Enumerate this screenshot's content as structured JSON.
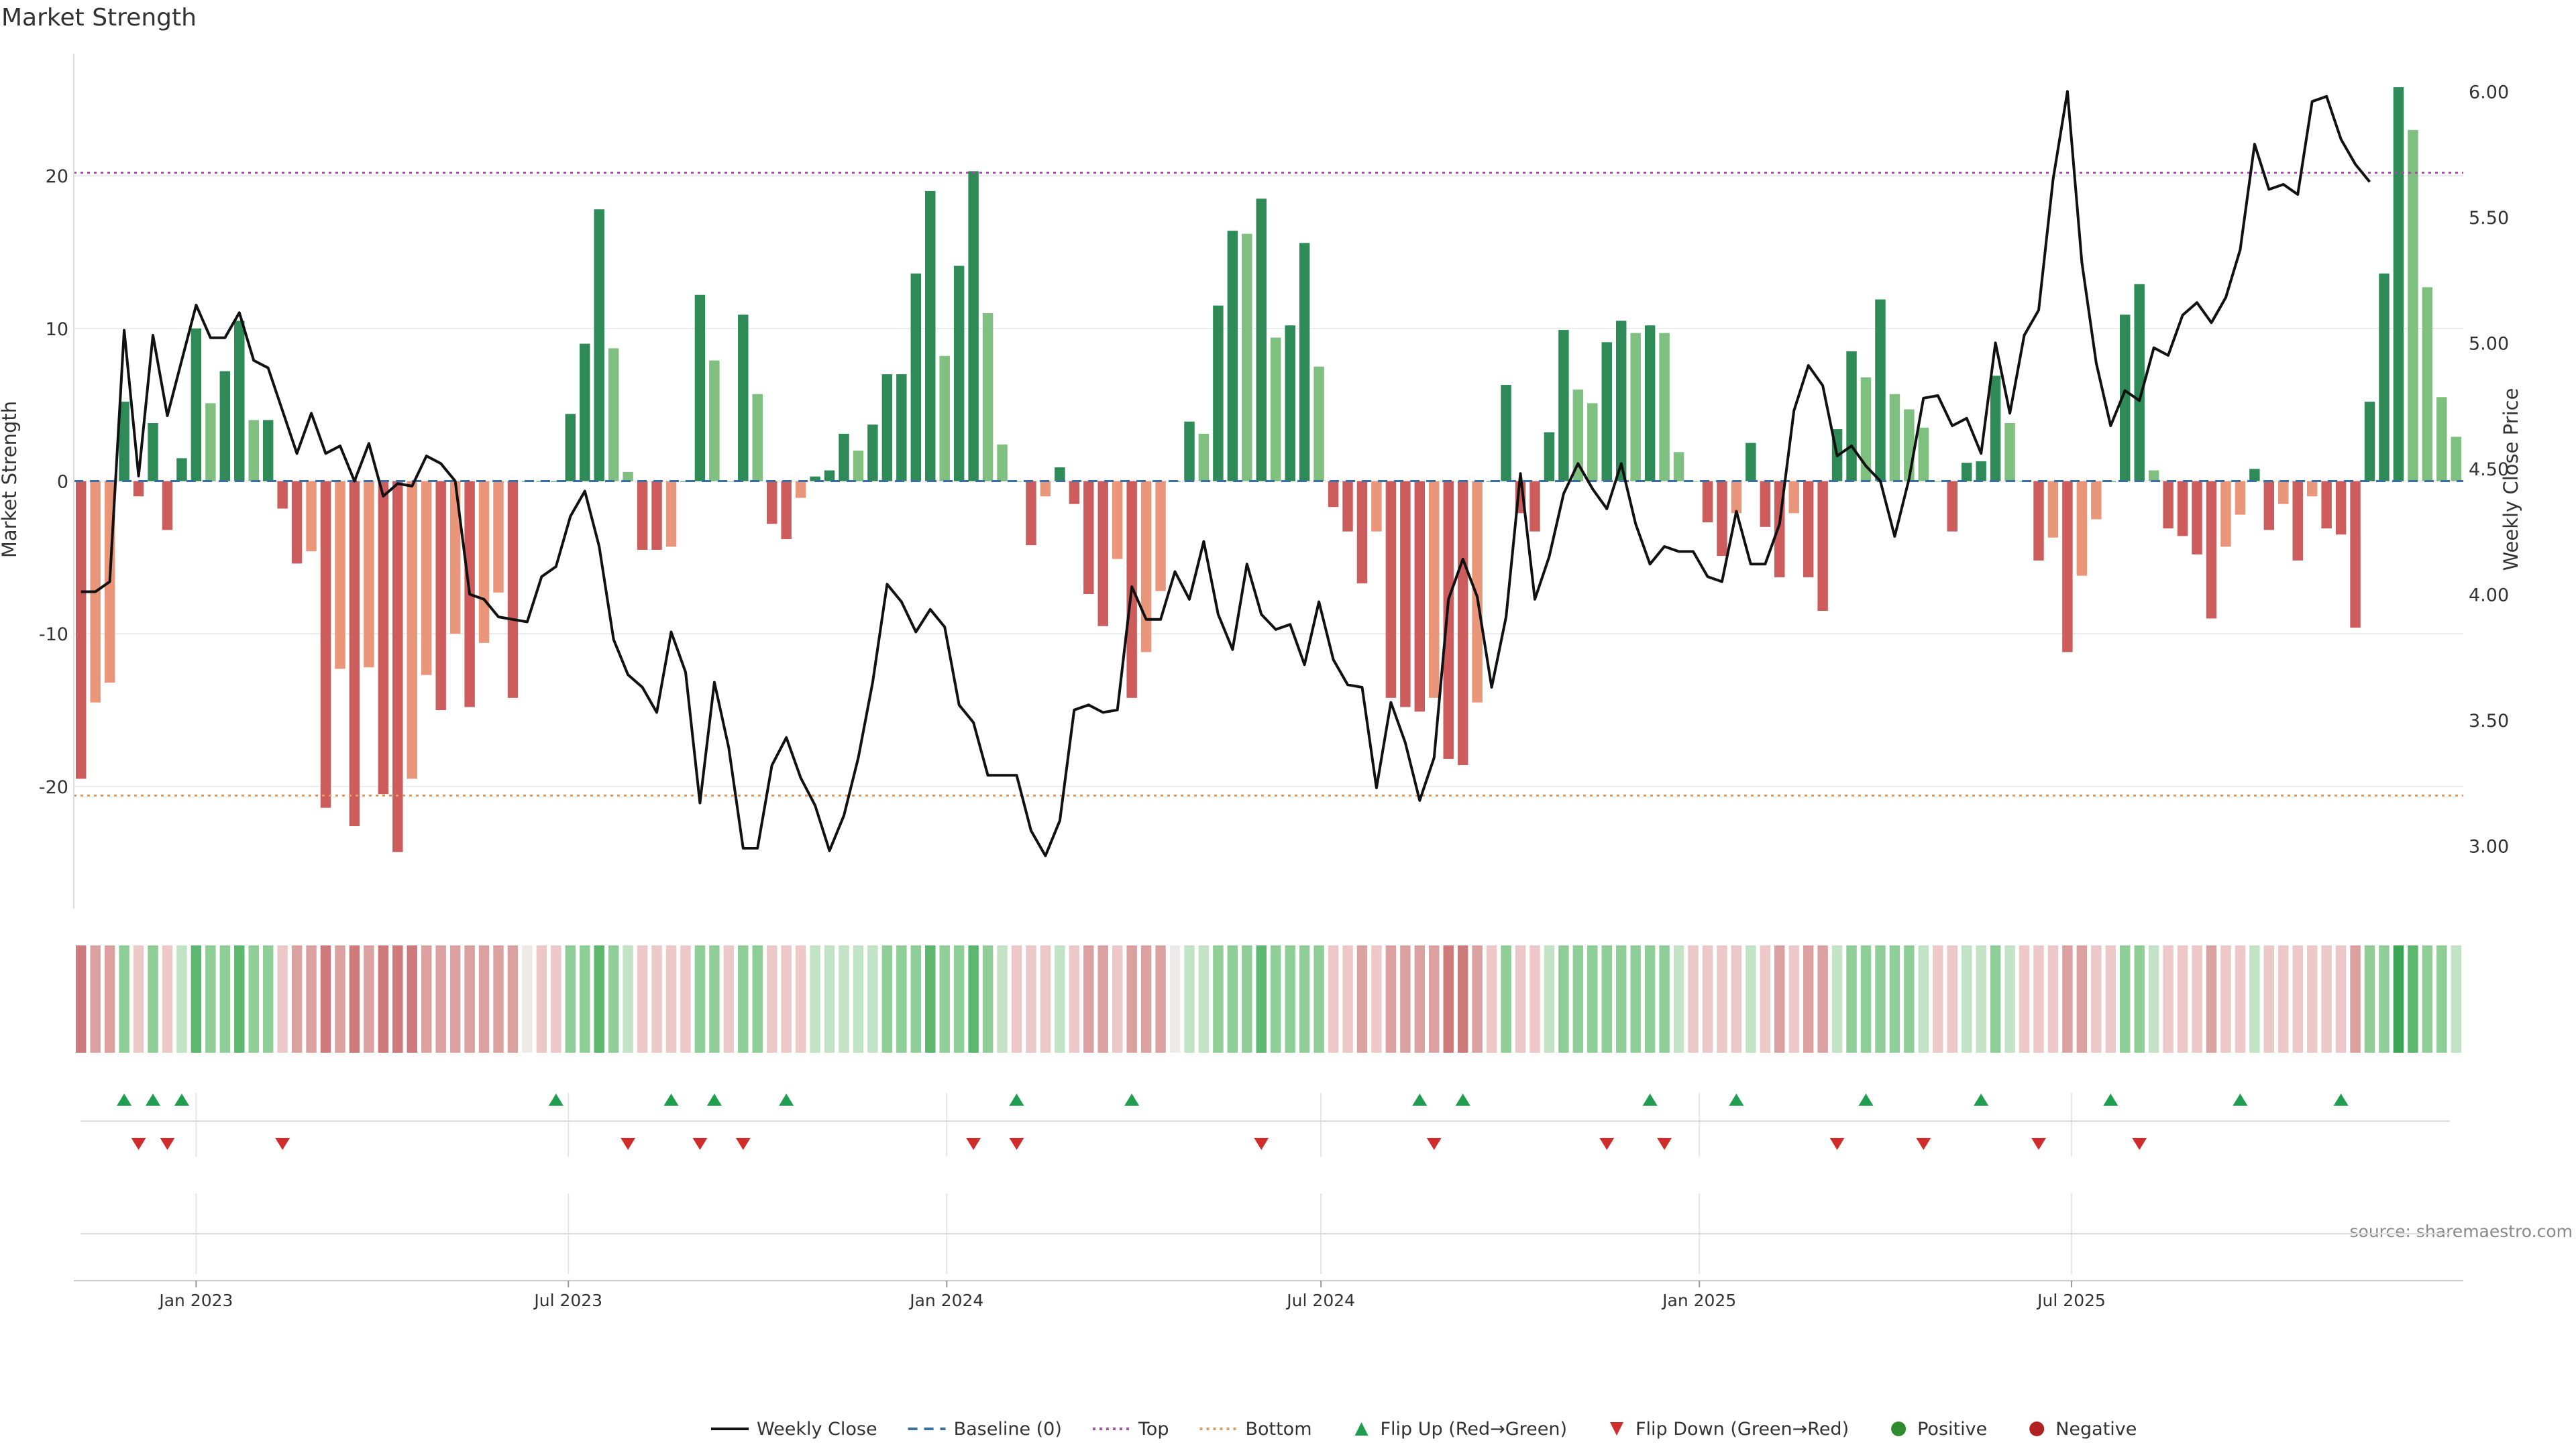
{
  "chart_data": {
    "type": "bar",
    "title": "Market Strength",
    "ylabel": "Market Strength",
    "ylabel_right": "Weekly Close Price",
    "source": "source: sharemaestro.com",
    "ylim": [
      -28,
      28
    ],
    "ylim_right": [
      2.75,
      6.15
    ],
    "yticks": [
      20,
      10,
      0,
      -10,
      -20
    ],
    "yticks_right": [
      "6.00",
      "5.50",
      "5.00",
      "4.50",
      "4.00",
      "3.50",
      "3.00"
    ],
    "top_threshold": 20.2,
    "bottom_threshold": -20.6,
    "x_start": "2022-11-06",
    "x_ticks": [
      {
        "date": "2023-01-01",
        "label": "Jan 2023"
      },
      {
        "date": "2023-07-01",
        "label": "Jul 2023"
      },
      {
        "date": "2024-01-01",
        "label": "Jan 2024"
      },
      {
        "date": "2024-07-01",
        "label": "Jul 2024"
      },
      {
        "date": "2025-01-01",
        "label": "Jan 2025"
      },
      {
        "date": "2025-07-01",
        "label": "Jul 2025"
      }
    ],
    "strength": [
      -19.5,
      -14.5,
      -13.2,
      5.2,
      -1,
      3.8,
      -3.2,
      1.5,
      10,
      5.1,
      7.2,
      10.5,
      4,
      4,
      -1.8,
      -5.4,
      -4.6,
      -21.4,
      -12.3,
      -22.6,
      -12.2,
      -20.5,
      -24.3,
      -19.5,
      -12.7,
      -15,
      -10,
      -14.8,
      -10.6,
      -7.3,
      -14.2,
      0,
      0,
      0,
      4.4,
      9,
      17.8,
      8.7,
      0.6,
      -4.5,
      -4.5,
      -4.3,
      0,
      12.2,
      7.9,
      0,
      10.9,
      5.7,
      -2.8,
      -3.8,
      -1.1,
      0.3,
      0.7,
      3.1,
      2,
      3.7,
      7,
      7,
      13.6,
      19,
      8.2,
      14.1,
      20.3,
      11,
      2.4,
      0,
      -4.2,
      -1,
      0.9,
      -1.5,
      -7.4,
      -9.5,
      -5.1,
      -14.2,
      -11.2,
      -7.2,
      0,
      3.9,
      3.1,
      11.5,
      16.4,
      16.2,
      18.5,
      9.4,
      10.2,
      15.6,
      7.5,
      -1.7,
      -3.3,
      -6.7,
      -3.3,
      -14.2,
      -14.8,
      -15.1,
      -14.2,
      -18.2,
      -18.6,
      -14.5,
      0,
      6.3,
      -2.1,
      -3.3,
      3.2,
      9.9,
      6,
      5.1,
      9.1,
      10.5,
      9.7,
      10.2,
      9.7,
      1.9,
      0,
      -2.7,
      -4.9,
      -2.1,
      2.5,
      -3,
      -6.3,
      -2.1,
      -6.3,
      -8.5,
      3.4,
      8.5,
      6.8,
      11.9,
      5.7,
      4.7,
      3.5,
      0,
      -3.3,
      1.2,
      1.3,
      6.9,
      3.8,
      0,
      -5.2,
      -3.7,
      -11.2,
      -6.2,
      -2.5,
      0,
      10.9,
      12.9,
      0.7,
      -3.1,
      -3.6,
      -4.8,
      -9,
      -4.3,
      -2.2,
      0.8,
      -3.2,
      -1.5,
      -5.2,
      -1,
      -3.1,
      -3.5,
      -9.6,
      5.2,
      13.6,
      25.8,
      23,
      12.7,
      5.5,
      2.9
    ],
    "weekly_close": [
      4.01,
      4.01,
      4.05,
      5.05,
      4.47,
      5.03,
      4.71,
      4.93,
      5.15,
      5.02,
      5.02,
      5.12,
      4.93,
      4.9,
      4.73,
      4.56,
      4.72,
      4.56,
      4.59,
      4.45,
      4.6,
      4.39,
      4.44,
      4.43,
      4.55,
      4.52,
      4.45,
      4.0,
      3.98,
      3.91,
      3.9,
      3.89,
      4.07,
      4.11,
      4.31,
      4.41,
      4.19,
      3.82,
      3.68,
      3.63,
      3.53,
      3.85,
      3.69,
      3.17,
      3.65,
      3.39,
      2.99,
      2.99,
      3.32,
      3.43,
      3.27,
      3.16,
      2.98,
      3.12,
      3.35,
      3.65,
      4.04,
      3.97,
      3.85,
      3.94,
      3.87,
      3.56,
      3.49,
      3.28,
      3.28,
      3.28,
      3.06,
      2.96,
      3.1,
      3.54,
      3.56,
      3.53,
      3.54,
      4.03,
      3.9,
      3.9,
      4.09,
      3.98,
      4.21,
      3.92,
      3.78,
      4.12,
      3.92,
      3.86,
      3.88,
      3.72,
      3.97,
      3.74,
      3.64,
      3.63,
      3.23,
      3.57,
      3.41,
      3.18,
      3.35,
      3.98,
      4.14,
      3.99,
      3.63,
      3.91,
      4.48,
      3.98,
      4.15,
      4.4,
      4.52,
      4.42,
      4.34,
      4.52,
      4.28,
      4.12,
      4.19,
      4.17,
      4.17,
      4.07,
      4.05,
      4.33,
      4.12,
      4.12,
      4.28,
      4.73,
      4.91,
      4.83,
      4.55,
      4.59,
      4.51,
      4.45,
      4.23,
      4.46,
      4.78,
      4.79,
      4.67,
      4.7,
      4.56,
      5.0,
      4.72,
      5.03,
      5.13,
      5.65,
      6.0,
      5.32,
      4.92,
      4.67,
      4.81,
      4.77,
      4.98,
      4.95,
      5.11,
      5.16,
      5.08,
      5.18,
      5.37,
      5.79,
      5.61,
      5.63,
      5.59,
      5.96,
      5.98,
      5.81,
      5.71,
      5.64
    ],
    "heat": [
      -3,
      -2,
      -2,
      2,
      -1,
      2,
      -1,
      1,
      3,
      2,
      2,
      3,
      2,
      2,
      -1,
      -2,
      -2,
      -3,
      -2,
      -3,
      -2,
      -3,
      -3,
      -3,
      -2,
      -2,
      -2,
      -2,
      -2,
      -2,
      -2,
      0,
      -1,
      -1,
      2,
      2,
      3,
      2,
      1,
      -1,
      -1,
      -1,
      -1,
      2,
      2,
      -1,
      2,
      2,
      -1,
      -1,
      -1,
      1,
      1,
      1,
      1,
      1,
      2,
      2,
      2,
      3,
      2,
      2,
      3,
      2,
      1,
      -1,
      -1,
      -1,
      1,
      -1,
      -2,
      -2,
      -1,
      -2,
      -2,
      -2,
      0,
      1,
      1,
      2,
      2,
      2,
      3,
      2,
      2,
      2,
      2,
      -1,
      -1,
      -2,
      -1,
      -2,
      -2,
      -2,
      -2,
      -3,
      -3,
      -2,
      -1,
      2,
      -1,
      -1,
      1,
      2,
      2,
      2,
      2,
      2,
      2,
      2,
      2,
      1,
      -1,
      -1,
      -1,
      -1,
      1,
      -1,
      -2,
      -1,
      -2,
      -2,
      1,
      2,
      2,
      2,
      2,
      2,
      1,
      -1,
      -1,
      1,
      1,
      2,
      1,
      -1,
      -1,
      -1,
      -2,
      -2,
      -1,
      -1,
      2,
      2,
      1,
      -1,
      -1,
      -1,
      -2,
      -1,
      -1,
      1,
      -1,
      -1,
      -1,
      -1,
      -1,
      -1,
      -2,
      2,
      2,
      4,
      3,
      2,
      2,
      1
    ],
    "flip_up_weeks": [
      3,
      5,
      7,
      33,
      41,
      44,
      49,
      65,
      73,
      93,
      96,
      109,
      115,
      124,
      132,
      141,
      150,
      157
    ],
    "flip_down_weeks": [
      4,
      6,
      14,
      38,
      43,
      46,
      62,
      65,
      82,
      94,
      106,
      110,
      122,
      128,
      136,
      143
    ],
    "legend": [
      {
        "label": "Weekly Close",
        "kind": "line",
        "color": "#111111"
      },
      {
        "label": "Baseline (0)",
        "kind": "dash",
        "color": "#3a6fa8"
      },
      {
        "label": "Top",
        "kind": "dot",
        "color": "#a64ca6"
      },
      {
        "label": "Bottom",
        "kind": "dot",
        "color": "#e39a5f"
      },
      {
        "label": "Flip Up (Red→Green)",
        "kind": "tri-up",
        "color": "#1f9e4f"
      },
      {
        "label": "Flip Down (Green→Red)",
        "kind": "tri-down",
        "color": "#d12c2c"
      },
      {
        "label": "Positive",
        "kind": "circle",
        "color": "#2e8b2e"
      },
      {
        "label": "Negative",
        "kind": "circle",
        "color": "#b22222"
      }
    ],
    "colors": {
      "pos_strong": "#2e8b57",
      "pos_light": "#7fbf7f",
      "neg_strong": "#cd5c5c",
      "neg_light": "#e9967a",
      "baseline": "#3a6fa8",
      "top": "#a64ca6",
      "bottom": "#e39a5f",
      "close": "#111111"
    }
  }
}
